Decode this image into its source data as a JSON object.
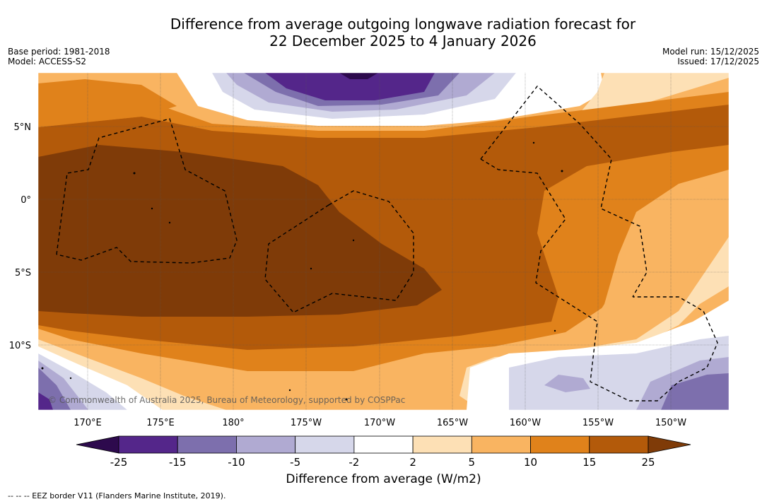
{
  "title_line1": "Difference from average outgoing longwave radiation forecast for",
  "title_line2": "22 December 2025 to 4 January 2026",
  "meta_left": {
    "base_period": "Base period: 1981-2018",
    "model": "Model: ACCESS-S2"
  },
  "meta_right": {
    "model_run": "Model run: 15/12/2025",
    "issued": "Issued: 17/12/2025"
  },
  "lat_labels": [
    "5°N",
    "0°",
    "5°S",
    "10°S"
  ],
  "lon_labels": [
    "170°E",
    "175°E",
    "180°",
    "175°W",
    "170°W",
    "165°W",
    "160°W",
    "155°W",
    "150°W"
  ],
  "copyright": "© Commonwealth of Australia 2025, Bureau of Meteorology, supported by COSPPac",
  "colorbar": {
    "ticks": [
      "-25",
      "-15",
      "-10",
      "-5",
      "-2",
      "2",
      "5",
      "10",
      "15",
      "25"
    ],
    "label": "Difference from average (W/m2)",
    "colors": [
      "#2d0a4d",
      "#54268a",
      "#7d6fad",
      "#b0aad2",
      "#d6d7ea",
      "#ffffff",
      "#fde0b5",
      "#f9b461",
      "#e0821b",
      "#b35a0a",
      "#7f3b08"
    ]
  },
  "footer": "--  --  -- EEZ border V11 (Flanders Marine Institute, 2019)."
}
